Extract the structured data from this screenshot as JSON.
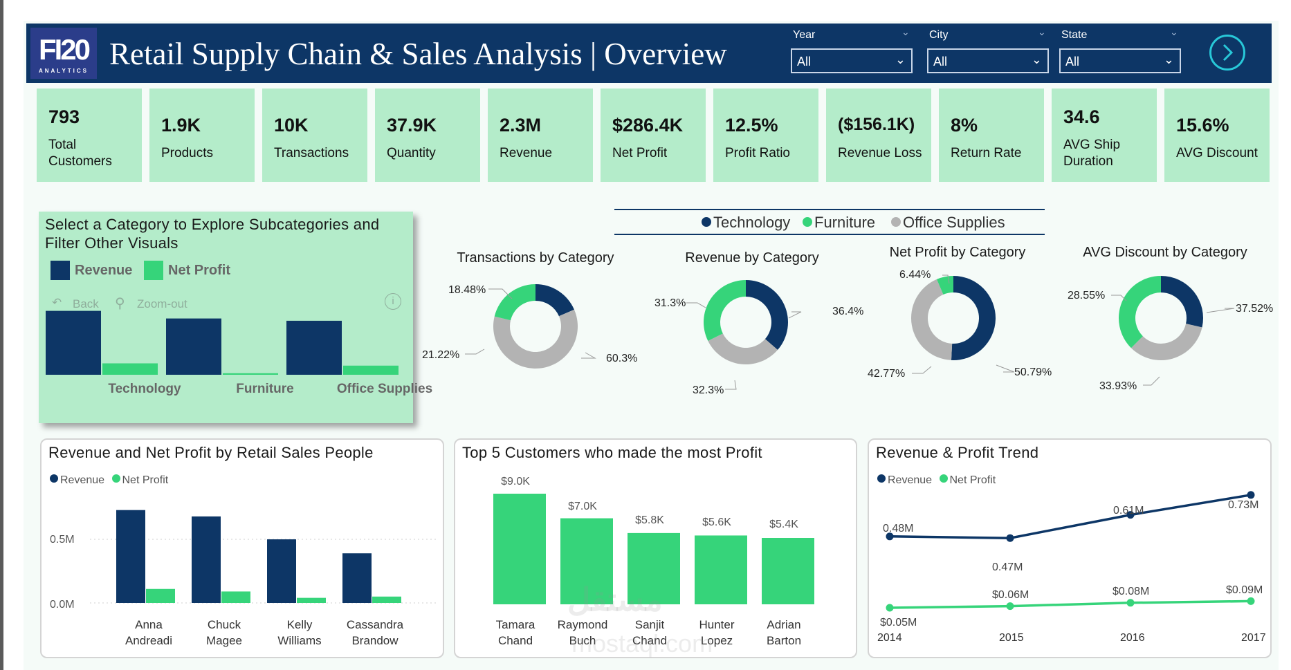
{
  "header": {
    "logo_main": "FI20",
    "logo_sub": "ANALYTICS",
    "title": "Retail Supply Chain & Sales Analysis | Overview",
    "filters": [
      {
        "label": "Year",
        "value": "All"
      },
      {
        "label": "City",
        "value": "All"
      },
      {
        "label": "State",
        "value": "All"
      }
    ]
  },
  "kpis": [
    {
      "value": "793",
      "label": "Total Customers"
    },
    {
      "value": "1.9K",
      "label": "Products"
    },
    {
      "value": "10K",
      "label": "Transactions"
    },
    {
      "value": "37.9K",
      "label": "Quantity"
    },
    {
      "value": "2.3M",
      "label": "Revenue"
    },
    {
      "value": "$286.4K",
      "label": "Net Profit"
    },
    {
      "value": "12.5%",
      "label": "Profit Ratio"
    },
    {
      "value": "($156.1K)",
      "label": "Revenue Loss"
    },
    {
      "value": "8%",
      "label": "Return Rate"
    },
    {
      "value": "34.6",
      "label": "AVG Ship Duration"
    },
    {
      "value": "15.6%",
      "label": "AVG Discount"
    }
  ],
  "category_panel": {
    "title": "Select a Category to Explore Subcategories and Filter Other Visuals",
    "legend": [
      "Revenue",
      "Net Profit"
    ],
    "back_label": "Back",
    "zoom_label": "Zoom-out",
    "categories": [
      "Technology",
      "Furniture",
      "Office Supplies"
    ]
  },
  "donut_legend": [
    "Technology",
    "Furniture",
    "Office Supplies"
  ],
  "donut_titles": [
    "Transactions by Category",
    "Revenue by Category",
    "Net Profit by Category",
    "AVG Discount by Category"
  ],
  "donut_labels": {
    "transactions": {
      "technology": "18.48%",
      "furniture": "21.22%",
      "office": "60.3%"
    },
    "revenue": {
      "technology": "36.4%",
      "furniture": "32.3%",
      "office": "31.3%"
    },
    "profit": {
      "technology": "50.79%",
      "furniture": "6.44%",
      "office": "42.77%"
    },
    "discount": {
      "technology": "28.55%",
      "furniture": "37.52%",
      "office": "33.93%"
    }
  },
  "sales_people_panel": {
    "title": "Revenue and Net Profit by Retail Sales People",
    "legend": [
      "Revenue",
      "Net Profit"
    ],
    "y_ticks": [
      "0.5M",
      "0.0M"
    ],
    "people": [
      [
        "Anna",
        "Andreadi"
      ],
      [
        "Chuck",
        "Magee"
      ],
      [
        "Kelly",
        "Williams"
      ],
      [
        "Cassandra",
        "Brandow"
      ]
    ]
  },
  "top_customers_panel": {
    "title": "Top 5 Customers who made the most Profit",
    "value_labels": [
      "$9.0K",
      "$7.0K",
      "$5.8K",
      "$5.6K",
      "$5.4K"
    ],
    "customers": [
      [
        "Tamara",
        "Chand"
      ],
      [
        "Raymond",
        "Buch"
      ],
      [
        "Sanjit",
        "Chand"
      ],
      [
        "Hunter",
        "Lopez"
      ],
      [
        "Adrian",
        "Barton"
      ]
    ]
  },
  "trend_panel": {
    "title": "Revenue & Profit Trend",
    "legend": [
      "Revenue",
      "Net Profit"
    ],
    "revenue_labels": [
      "0.48M",
      "0.47M",
      "0.61M",
      "0.73M"
    ],
    "profit_labels": [
      "$0.05M",
      "$0.06M",
      "$0.08M",
      "$0.09M"
    ],
    "years": [
      "2014",
      "2015",
      "2016",
      "2017"
    ]
  },
  "watermark": {
    "arabic": "مستقل",
    "latin": "mostaql.com"
  },
  "colors": {
    "technology": "#0d3666",
    "furniture": "#36d47a",
    "office": "#b3b3b3",
    "revenue": "#0d3666",
    "net_profit": "#36d47a",
    "kpi_bg": "#b4ecca",
    "header_bg": "#0d3666"
  },
  "chart_data": [
    {
      "type": "pie",
      "title": "Transactions by Category",
      "categories": [
        "Technology",
        "Furniture",
        "Office Supplies"
      ],
      "values": [
        18.48,
        21.22,
        60.3
      ]
    },
    {
      "type": "pie",
      "title": "Revenue by Category",
      "categories": [
        "Technology",
        "Furniture",
        "Office Supplies"
      ],
      "values": [
        36.4,
        32.3,
        31.3
      ]
    },
    {
      "type": "pie",
      "title": "Net Profit by Category",
      "categories": [
        "Technology",
        "Furniture",
        "Office Supplies"
      ],
      "values": [
        50.79,
        6.44,
        42.77
      ]
    },
    {
      "type": "pie",
      "title": "AVG Discount by Category",
      "categories": [
        "Technology",
        "Furniture",
        "Office Supplies"
      ],
      "values": [
        28.55,
        37.52,
        33.93
      ]
    },
    {
      "type": "bar",
      "title": "",
      "categories": [
        "Technology",
        "Furniture",
        "Office Supplies"
      ],
      "series": [
        {
          "name": "Revenue",
          "values": [
            0.84,
            0.74,
            0.71
          ]
        },
        {
          "name": "Net Profit",
          "values": [
            0.15,
            0.02,
            0.12
          ]
        }
      ],
      "ylim": [
        0,
        1
      ]
    },
    {
      "type": "bar",
      "title": "Revenue and Net Profit by Retail Sales People",
      "categories": [
        "Anna Andreadi",
        "Chuck Magee",
        "Kelly Williams",
        "Cassandra Brandow"
      ],
      "series": [
        {
          "name": "Revenue",
          "values": [
            0.73,
            0.68,
            0.5,
            0.39
          ]
        },
        {
          "name": "Net Profit",
          "values": [
            0.11,
            0.09,
            0.04,
            0.05
          ]
        }
      ],
      "ylim": [
        0,
        0.8
      ]
    },
    {
      "type": "bar",
      "title": "Top 5 Customers who made the most Profit",
      "categories": [
        "Tamara Chand",
        "Raymond Buch",
        "Sanjit Chand",
        "Hunter Lopez",
        "Adrian Barton"
      ],
      "values": [
        9.0,
        7.0,
        5.8,
        5.6,
        5.4
      ],
      "ylim": [
        0,
        9.0
      ]
    },
    {
      "type": "line",
      "title": "Revenue & Profit Trend",
      "x": [
        "2014",
        "2015",
        "2016",
        "2017"
      ],
      "series": [
        {
          "name": "Revenue",
          "values": [
            0.48,
            0.47,
            0.61,
            0.73
          ]
        },
        {
          "name": "Net Profit",
          "values": [
            0.05,
            0.06,
            0.08,
            0.09
          ]
        }
      ]
    }
  ]
}
